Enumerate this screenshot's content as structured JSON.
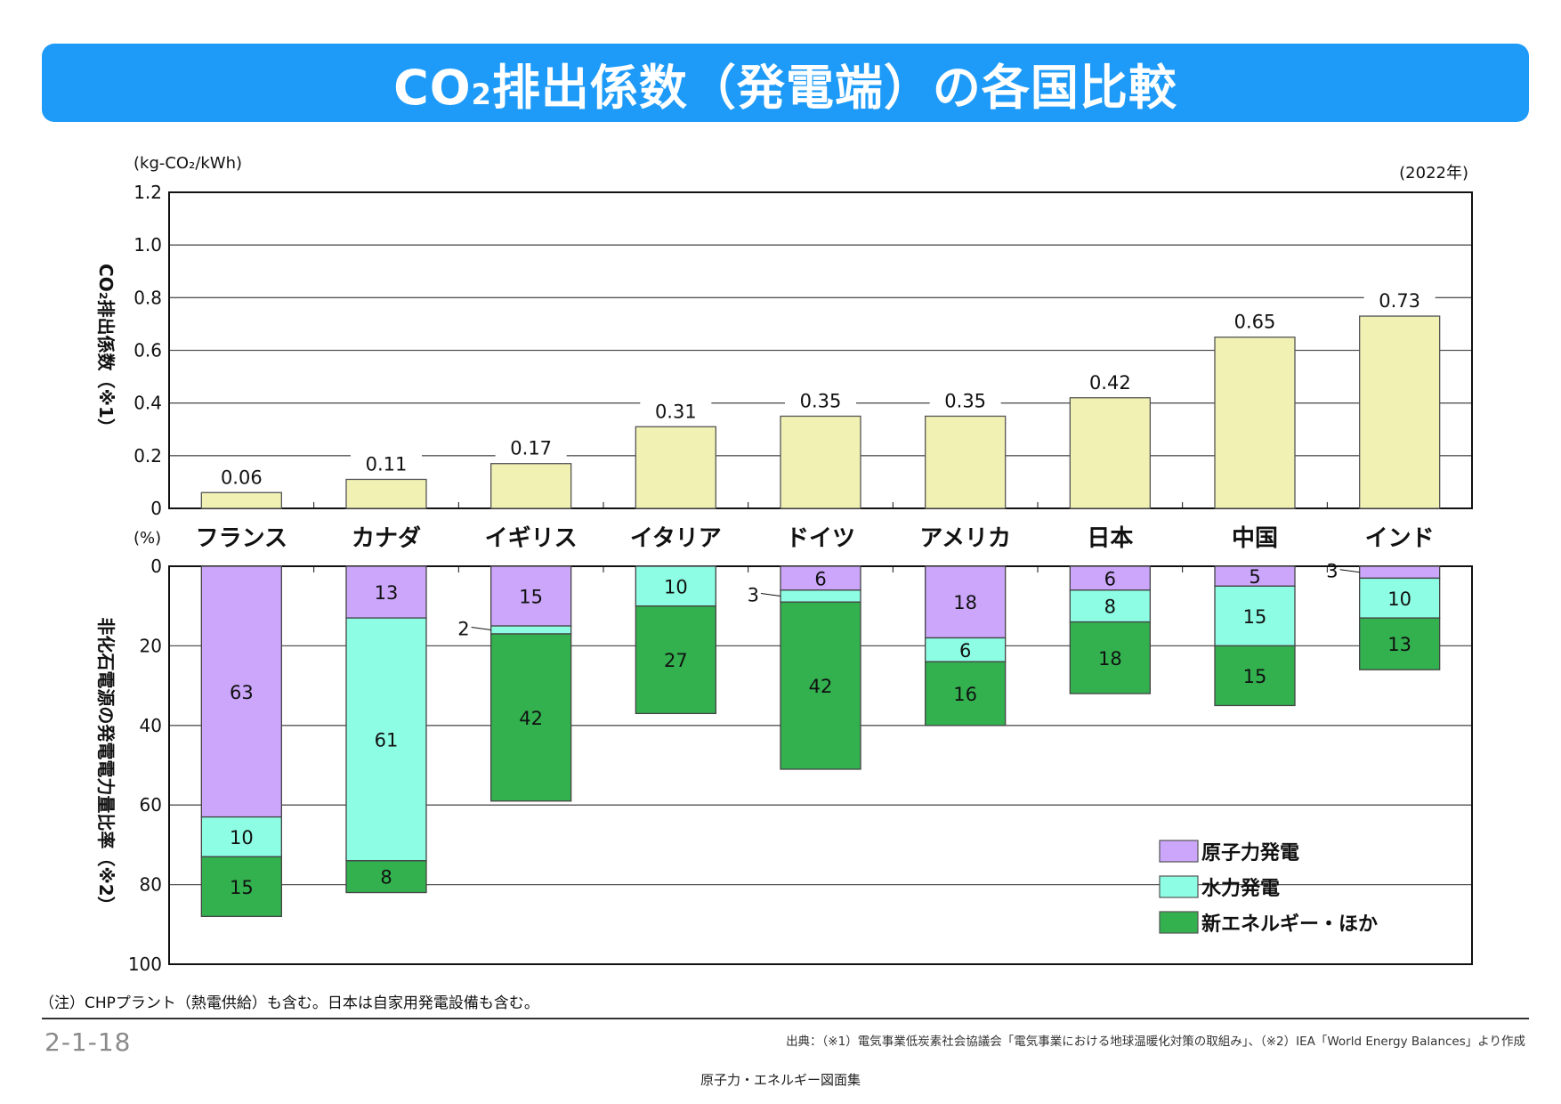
{
  "header": {
    "title_prefix": "CO",
    "title_sub": "2",
    "title_suffix": "排出係数（発電端）の各国比較"
  },
  "chart_data": [
    {
      "type": "bar",
      "title": "CO2排出係数（発電端）",
      "unit_label": "(kg-CO₂/kWh)",
      "year_label": "(2022年)",
      "ylabel": "CO₂排出係数（※1）",
      "ylim": [
        0,
        1.2
      ],
      "yticks": [
        "0",
        "0.2",
        "0.4",
        "0.6",
        "0.8",
        "1.0",
        "1.2"
      ],
      "ytick_values": [
        0,
        0.2,
        0.4,
        0.6,
        0.8,
        1.0,
        1.2
      ],
      "grid": true,
      "categories": [
        "フランス",
        "カナダ",
        "イギリス",
        "イタリア",
        "ドイツ",
        "アメリカ",
        "日本",
        "中国",
        "インド"
      ],
      "values": [
        0.06,
        0.11,
        0.17,
        0.31,
        0.35,
        0.35,
        0.42,
        0.65,
        0.73
      ],
      "value_labels": [
        "0.06",
        "0.11",
        "0.17",
        "0.31",
        "0.35",
        "0.35",
        "0.42",
        "0.65",
        "0.73"
      ],
      "color": "#f1f1b4"
    },
    {
      "type": "bar",
      "stacked": true,
      "inverted_axis": true,
      "title": "非化石電源の発電電力量比率",
      "unit_label": "(%)",
      "ylabel": "非化石電源の発電電力量比率（※2）",
      "ylim": [
        0,
        100
      ],
      "yticks": [
        "0",
        "20",
        "40",
        "60",
        "80",
        "100"
      ],
      "ytick_values": [
        0,
        20,
        40,
        60,
        80,
        100
      ],
      "grid": true,
      "categories": [
        "フランス",
        "カナダ",
        "イギリス",
        "イタリア",
        "ドイツ",
        "アメリカ",
        "日本",
        "中国",
        "インド"
      ],
      "series": [
        {
          "name": "原子力発電",
          "color": "#cba6fb",
          "values": [
            63,
            13,
            15,
            0,
            6,
            18,
            6,
            5,
            3
          ]
        },
        {
          "name": "水力発電",
          "color": "#8dfde3",
          "values": [
            10,
            61,
            2,
            10,
            3,
            6,
            8,
            15,
            10
          ]
        },
        {
          "name": "新エネルギー・ほか",
          "color": "#33b14f",
          "values": [
            15,
            8,
            42,
            27,
            42,
            16,
            18,
            15,
            13
          ]
        }
      ],
      "outside_labels": [
        {
          "category": "イギリス",
          "series": "水力発電",
          "text": "2"
        },
        {
          "category": "ドイツ",
          "series": "水力発電",
          "text": "3"
        },
        {
          "category": "インド",
          "series": "原子力発電",
          "text": "3"
        }
      ],
      "legend": "bottom-right"
    }
  ],
  "notes": {
    "remark": "（注）CHPプラント（熱電供給）も含む。日本は自家用発電設備も含む。",
    "page_number": "2-1-18",
    "source": "出典：（※1）電気事業低炭素社会協議会「電気事業における地球温暖化対策の取組み」、（※2）IEA「World Energy Balances」より作成",
    "footer": "原子力・エネルギー図面集"
  }
}
